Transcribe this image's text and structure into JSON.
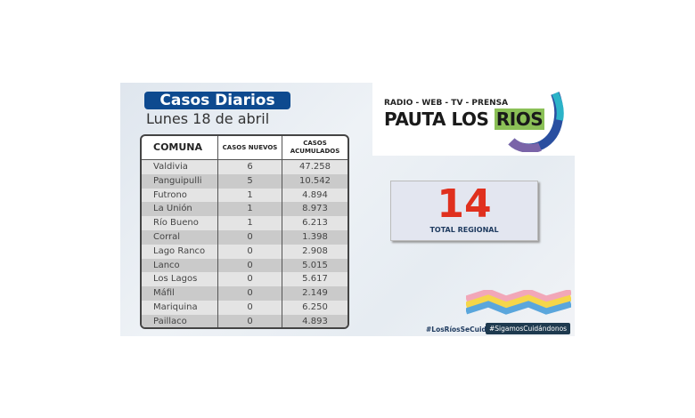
{
  "header": {
    "title": "Casos Diarios",
    "date": "Lunes 18 de abril"
  },
  "table": {
    "headers": [
      "COMUNA",
      "CASOS NUEVOS",
      "CASOS ACUMULADOS"
    ],
    "rows": [
      [
        "Valdivia",
        "6",
        "47.258"
      ],
      [
        "Panguipulli",
        "5",
        "10.542"
      ],
      [
        "Futrono",
        "1",
        "4.894"
      ],
      [
        "La Unión",
        "1",
        "8.973"
      ],
      [
        "Río Bueno",
        "1",
        "6.213"
      ],
      [
        "Corral",
        "0",
        "1.398"
      ],
      [
        "Lago Ranco",
        "0",
        "2.908"
      ],
      [
        "Lanco",
        "0",
        "5.015"
      ],
      [
        "Los Lagos",
        "0",
        "5.617"
      ],
      [
        "Máfil",
        "0",
        "2.149"
      ],
      [
        "Mariquina",
        "0",
        "6.250"
      ],
      [
        "Paillaco",
        "0",
        "4.893"
      ]
    ]
  },
  "logo": {
    "tagline": "RADIO - WEB - TV - PRENSA",
    "name_a": "PAUTA LOS ",
    "name_b": "RIOS"
  },
  "total": {
    "value": "14",
    "label": "TOTAL REGIONAL",
    "color": "#e0301e"
  },
  "hashtags": [
    "#LosRíosSeCuida",
    "#SigamosCuidándonos"
  ]
}
